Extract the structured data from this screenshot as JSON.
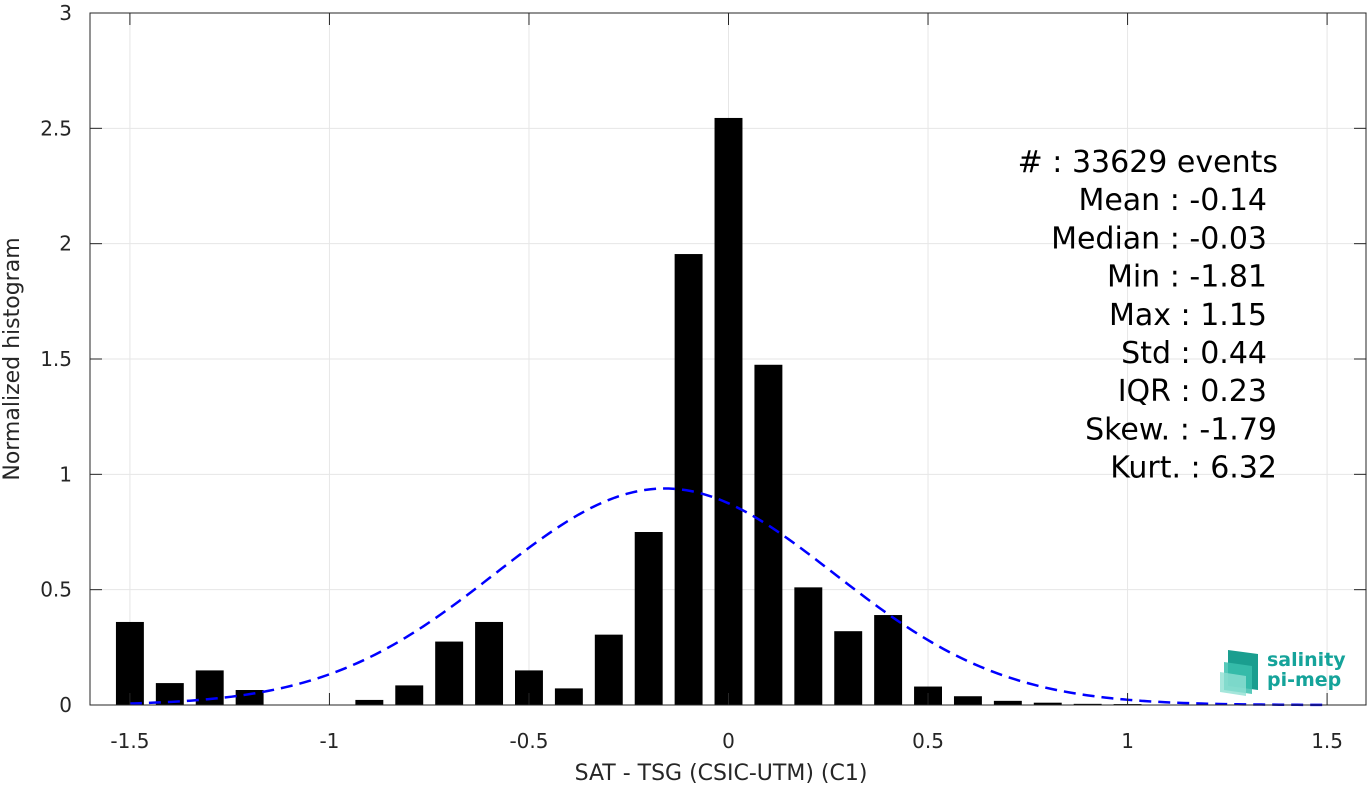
{
  "chart_data": {
    "type": "bar",
    "xlabel": "SAT - TSG (CSIC-UTM) (C1)",
    "ylabel": "Normalized histogram",
    "xlim": [
      -1.6,
      1.6
    ],
    "ylim": [
      0,
      3
    ],
    "grid": true,
    "x_ticks": [
      -1.5,
      -1,
      -0.5,
      0,
      0.5,
      1,
      1.5
    ],
    "x_tick_labels": [
      "-1.5",
      "-1",
      "-0.5",
      "0",
      "0.5",
      "1",
      "1.5"
    ],
    "y_ticks": [
      0,
      0.5,
      1,
      1.5,
      2,
      2.5,
      3
    ],
    "y_tick_labels": [
      "0",
      "0.5",
      "1",
      "1.5",
      "2",
      "2.5",
      "3"
    ],
    "bin_width": 0.1,
    "bar_color": "#000000",
    "bins": [
      {
        "x": -1.5,
        "value": 0.36
      },
      {
        "x": -1.4,
        "value": 0.095
      },
      {
        "x": -1.3,
        "value": 0.15
      },
      {
        "x": -1.2,
        "value": 0.065
      },
      {
        "x": -1.1,
        "value": 0.0
      },
      {
        "x": -1.0,
        "value": 0.0
      },
      {
        "x": -0.9,
        "value": 0.022
      },
      {
        "x": -0.8,
        "value": 0.085
      },
      {
        "x": -0.7,
        "value": 0.275
      },
      {
        "x": -0.6,
        "value": 0.36
      },
      {
        "x": -0.5,
        "value": 0.15
      },
      {
        "x": -0.4,
        "value": 0.072
      },
      {
        "x": -0.3,
        "value": 0.305
      },
      {
        "x": -0.2,
        "value": 0.75
      },
      {
        "x": -0.1,
        "value": 1.955
      },
      {
        "x": 0.0,
        "value": 2.545
      },
      {
        "x": 0.1,
        "value": 1.475
      },
      {
        "x": 0.2,
        "value": 0.51
      },
      {
        "x": 0.3,
        "value": 0.32
      },
      {
        "x": 0.4,
        "value": 0.39
      },
      {
        "x": 0.5,
        "value": 0.08
      },
      {
        "x": 0.6,
        "value": 0.038
      },
      {
        "x": 0.7,
        "value": 0.018
      },
      {
        "x": 0.8,
        "value": 0.01
      },
      {
        "x": 0.9,
        "value": 0.005
      },
      {
        "x": 1.0,
        "value": 0.004
      },
      {
        "x": 1.1,
        "value": 0.002
      },
      {
        "x": 1.2,
        "value": 0.0
      },
      {
        "x": 1.3,
        "value": 0.0
      },
      {
        "x": 1.4,
        "value": 0.0
      },
      {
        "x": 1.5,
        "value": 0.0
      }
    ],
    "fit_curve": {
      "kind": "normal",
      "mean": -0.16,
      "std": 0.425,
      "x_range": [
        -1.5,
        1.5
      ],
      "color": "#0000ff",
      "line_style": "dashed"
    },
    "stats": [
      {
        "label": "#  : 33629 events"
      },
      {
        "label": "Mean : -0.14"
      },
      {
        "label": "Median : -0.03"
      },
      {
        "label": "Min : -1.81"
      },
      {
        "label": "Max : 1.15"
      },
      {
        "label": "Std : 0.44"
      },
      {
        "label": "IQR : 0.23"
      },
      {
        "label": "Skew. : -1.79"
      },
      {
        "label": "Kurt. : 6.32"
      }
    ]
  },
  "logo": {
    "line1": "salinity",
    "line2": "pi-mep",
    "color": "#15a39a"
  }
}
